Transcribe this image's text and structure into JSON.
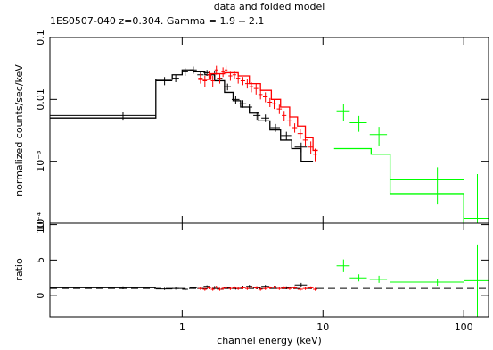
{
  "chart_data": [
    {
      "type": "errorbar",
      "title": "data and folded model",
      "subtitle": "1ES0507-040 z=0.304. Gamma = 1.9 -- 2.1",
      "ylabel": "normalized counts/sec/keV",
      "xlog": true,
      "ylog": true,
      "xlim": [
        0.115,
        150
      ],
      "ylim": [
        0.0001,
        0.1
      ],
      "yticks": [
        0.1,
        0.01,
        {
          "value": 0.001,
          "label": "10⁻³"
        },
        {
          "value": 0.0001,
          "label": "10⁻⁴"
        }
      ],
      "series": [
        {
          "style": "points",
          "color": "#000000",
          "x": [
            0.38,
            0.75,
            0.9,
            1.05,
            1.2,
            1.35,
            1.5,
            1.7,
            1.85,
            2.1,
            2.4,
            2.7,
            3.0,
            3.4,
            3.9,
            4.6,
            5.5,
            7.0
          ],
          "xerr": [
            0.27,
            0.1,
            0.05,
            0.05,
            0.07,
            0.07,
            0.08,
            0.1,
            0.08,
            0.12,
            0.15,
            0.15,
            0.15,
            0.2,
            0.25,
            0.35,
            0.45,
            0.7
          ],
          "values": [
            0.0055,
            0.02,
            0.022,
            0.028,
            0.03,
            0.025,
            0.027,
            0.026,
            0.022,
            0.016,
            0.01,
            0.0085,
            0.0075,
            0.0055,
            0.005,
            0.0035,
            0.0026,
            0.0017
          ],
          "yerr": [
            0.0008,
            0.003,
            0.003,
            0.004,
            0.004,
            0.003,
            0.003,
            0.003,
            0.003,
            0.002,
            0.0015,
            0.0012,
            0.001,
            0.0008,
            0.0007,
            0.0005,
            0.0004,
            0.0003
          ]
        },
        {
          "style": "step",
          "color": "#000000",
          "x": [
            0.115,
            0.65,
            0.85,
            1.0,
            1.2,
            1.45,
            1.7,
            2.0,
            2.3,
            2.6,
            3.0,
            3.5,
            4.2,
            5.0,
            6.0,
            7.0,
            8.5
          ],
          "values": [
            0.005,
            0.021,
            0.025,
            0.03,
            0.028,
            0.025,
            0.02,
            0.013,
            0.0095,
            0.0075,
            0.006,
            0.0045,
            0.0032,
            0.0022,
            0.0016,
            0.001,
            0.001
          ]
        },
        {
          "style": "points",
          "color": "#ff0000",
          "x": [
            1.35,
            1.45,
            1.55,
            1.65,
            1.75,
            1.85,
            1.95,
            2.05,
            2.2,
            2.35,
            2.5,
            2.7,
            2.9,
            3.1,
            3.35,
            3.6,
            3.9,
            4.2,
            4.5,
            4.9,
            5.3,
            5.8,
            6.3,
            6.9,
            7.5,
            8.2,
            8.8
          ],
          "xerr": [
            0.05,
            0.05,
            0.05,
            0.05,
            0.05,
            0.05,
            0.05,
            0.05,
            0.07,
            0.07,
            0.08,
            0.1,
            0.1,
            0.1,
            0.12,
            0.12,
            0.15,
            0.15,
            0.15,
            0.2,
            0.2,
            0.25,
            0.25,
            0.3,
            0.3,
            0.35,
            0.3
          ],
          "values": [
            0.022,
            0.02,
            0.025,
            0.02,
            0.03,
            0.022,
            0.028,
            0.03,
            0.024,
            0.025,
            0.022,
            0.02,
            0.018,
            0.016,
            0.015,
            0.012,
            0.011,
            0.009,
            0.0085,
            0.007,
            0.0055,
            0.0045,
            0.0035,
            0.0028,
            0.0022,
            0.0017,
            0.0013
          ],
          "yerr": [
            0.004,
            0.004,
            0.004,
            0.004,
            0.005,
            0.004,
            0.005,
            0.005,
            0.004,
            0.004,
            0.004,
            0.003,
            0.003,
            0.003,
            0.003,
            0.002,
            0.002,
            0.0015,
            0.0015,
            0.0012,
            0.001,
            0.0008,
            0.0006,
            0.0005,
            0.0004,
            0.0004,
            0.0003
          ]
        },
        {
          "style": "step",
          "color": "#ff0000",
          "x": [
            1.3,
            1.6,
            2.0,
            2.5,
            3.0,
            3.6,
            4.3,
            5.0,
            5.8,
            6.6,
            7.5,
            8.5,
            9.2
          ],
          "values": [
            0.021,
            0.026,
            0.027,
            0.024,
            0.018,
            0.014,
            0.01,
            0.0075,
            0.0052,
            0.0037,
            0.0024,
            0.0015,
            0.0015
          ]
        },
        {
          "style": "points",
          "color": "#00ff00",
          "x": [
            14,
            18,
            25,
            65,
            125
          ],
          "xerr": [
            1.5,
            2.5,
            3.5,
            35,
            25
          ],
          "values": [
            0.0065,
            0.0042,
            0.0027,
            0.0005,
            0.00012
          ],
          "yerr": [
            0.002,
            0.0012,
            0.0009,
            0.0003,
            0.0005
          ]
        },
        {
          "style": "step",
          "color": "#00ff00",
          "x": [
            12,
            22,
            30,
            100,
            150
          ],
          "values": [
            0.0016,
            0.0013,
            0.0003,
            9e-05,
            9e-05
          ]
        }
      ]
    },
    {
      "type": "errorbar",
      "ylabel": "ratio",
      "xlabel": "channel energy (keV)",
      "xlog": true,
      "ylog": false,
      "xlim": [
        0.115,
        150
      ],
      "ylim": [
        -3,
        10.2
      ],
      "yticks": [
        0,
        5,
        10
      ],
      "xticks": [
        1,
        10,
        100
      ],
      "reference_line": 1,
      "series": [
        {
          "style": "points",
          "color": "#000000",
          "x": [
            0.38,
            0.75,
            0.9,
            1.05,
            1.2,
            1.35,
            1.5,
            1.7,
            1.85,
            2.1,
            2.4,
            2.7,
            3.0,
            3.4,
            3.9,
            4.6,
            5.5,
            7.0
          ],
          "xerr": [
            0.27,
            0.1,
            0.05,
            0.05,
            0.07,
            0.07,
            0.08,
            0.1,
            0.08,
            0.12,
            0.15,
            0.15,
            0.15,
            0.2,
            0.25,
            0.35,
            0.45,
            0.7
          ],
          "values": [
            1.1,
            0.95,
            1.0,
            0.9,
            1.1,
            1.0,
            1.3,
            1.2,
            0.9,
            1.1,
            1.0,
            1.2,
            1.3,
            1.1,
            1.3,
            1.2,
            1.1,
            1.5
          ],
          "yerr": [
            0.2,
            0.15,
            0.15,
            0.15,
            0.15,
            0.15,
            0.15,
            0.15,
            0.15,
            0.15,
            0.15,
            0.2,
            0.2,
            0.2,
            0.2,
            0.2,
            0.2,
            0.3
          ]
        },
        {
          "style": "points",
          "color": "#ff0000",
          "x": [
            1.35,
            1.45,
            1.55,
            1.65,
            1.75,
            1.85,
            1.95,
            2.05,
            2.2,
            2.35,
            2.5,
            2.7,
            2.9,
            3.1,
            3.35,
            3.6,
            3.9,
            4.2,
            4.5,
            4.9,
            5.3,
            5.8,
            6.3,
            6.9,
            7.5,
            8.2,
            8.8
          ],
          "xerr": [
            0.05,
            0.05,
            0.05,
            0.05,
            0.05,
            0.05,
            0.05,
            0.05,
            0.07,
            0.07,
            0.08,
            0.1,
            0.1,
            0.1,
            0.12,
            0.12,
            0.15,
            0.15,
            0.15,
            0.2,
            0.2,
            0.25,
            0.25,
            0.3,
            0.3,
            0.35,
            0.3
          ],
          "values": [
            1.0,
            0.9,
            1.1,
            0.9,
            1.2,
            0.9,
            1.0,
            1.1,
            1.0,
            1.1,
            1.0,
            1.1,
            1.0,
            1.2,
            1.1,
            0.9,
            1.0,
            1.1,
            1.2,
            1.0,
            1.1,
            1.0,
            1.1,
            0.9,
            1.0,
            1.1,
            0.9
          ],
          "yerr": [
            0.2,
            0.2,
            0.2,
            0.2,
            0.2,
            0.2,
            0.2,
            0.2,
            0.2,
            0.2,
            0.2,
            0.2,
            0.2,
            0.2,
            0.2,
            0.2,
            0.2,
            0.2,
            0.2,
            0.2,
            0.2,
            0.2,
            0.2,
            0.2,
            0.2,
            0.2,
            0.2
          ]
        },
        {
          "style": "points",
          "color": "#00ff00",
          "x": [
            14,
            18,
            25,
            65,
            125
          ],
          "xerr": [
            1.5,
            2.5,
            3.5,
            35,
            25
          ],
          "values": [
            4.2,
            2.5,
            2.3,
            1.9,
            2.1
          ],
          "yerr": [
            0.9,
            0.5,
            0.5,
            0.5,
            5.1
          ]
        }
      ]
    }
  ]
}
